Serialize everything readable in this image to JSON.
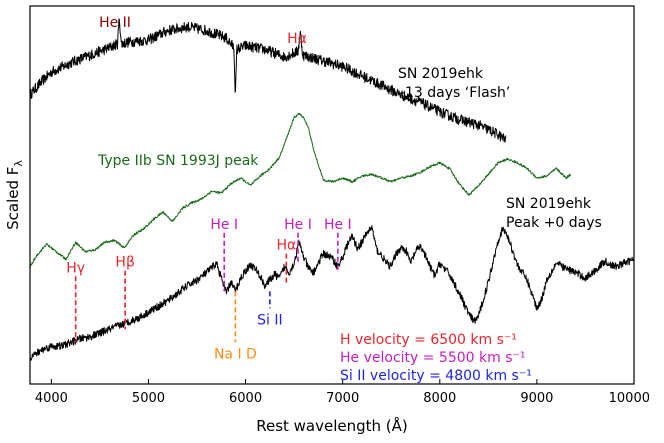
{
  "chart_data": {
    "type": "line",
    "title": "",
    "xlabel": "Rest wavelength (Å)",
    "ylabel": "Scaled F",
    "ylabel_subscript": "λ",
    "xlim": [
      3780,
      10000
    ],
    "ylim": [
      0,
      10
    ],
    "xticks": [
      4000,
      5000,
      6000,
      7000,
      8000,
      9000,
      10000
    ],
    "xtick_labels": [
      "4000",
      "5000",
      "6000",
      "7000",
      "8000",
      "9000",
      "10000"
    ],
    "colors": {
      "flash": "#000000",
      "sn1993j": "#1a6b1a",
      "peak": "#000000",
      "hydrogen": "#e8262d",
      "helium": "#c21fc2",
      "silicon": "#1f25e0",
      "sodium": "#ff8c1a",
      "helium_flash": "#8b0000"
    },
    "series": [
      {
        "name": "SN 2019ehk -13 days 'Flash'",
        "color": "#000000",
        "noise": 0.14,
        "x": [
          3780,
          3900,
          4000,
          4200,
          4400,
          4600,
          4680,
          4700,
          4720,
          4800,
          5000,
          5200,
          5400,
          5600,
          5800,
          5880,
          5895,
          5910,
          6000,
          6200,
          6400,
          6540,
          6563,
          6590,
          6800,
          7000,
          7200,
          7400,
          7600,
          7800,
          8000,
          8200,
          8400,
          8600,
          8680
        ],
        "y": [
          7.65,
          8.0,
          8.25,
          8.5,
          8.7,
          8.9,
          9.0,
          9.7,
          9.0,
          9.05,
          9.1,
          9.35,
          9.45,
          9.35,
          9.15,
          8.9,
          7.6,
          8.85,
          8.95,
          8.85,
          8.65,
          8.8,
          9.3,
          8.7,
          8.55,
          8.4,
          8.15,
          7.9,
          7.65,
          7.45,
          7.2,
          7.0,
          6.85,
          6.6,
          6.45
        ]
      },
      {
        "name": "Type IIb SN 1993J peak",
        "color": "#1a6b1a",
        "noise": 0.03,
        "x": [
          3780,
          3850,
          3950,
          4050,
          4150,
          4250,
          4350,
          4450,
          4550,
          4650,
          4750,
          4850,
          4950,
          5050,
          5150,
          5250,
          5350,
          5450,
          5550,
          5650,
          5750,
          5850,
          5950,
          6050,
          6150,
          6250,
          6350,
          6450,
          6500,
          6550,
          6600,
          6650,
          6700,
          6800,
          6900,
          7000,
          7100,
          7200,
          7300,
          7400,
          7500,
          7600,
          7700,
          7800,
          7900,
          8000,
          8100,
          8200,
          8300,
          8400,
          8500,
          8600,
          8700,
          8800,
          8900,
          9000,
          9100,
          9200,
          9300,
          9350
        ],
        "y": [
          3.1,
          3.4,
          3.7,
          3.5,
          3.3,
          3.75,
          3.5,
          3.55,
          3.75,
          3.8,
          3.6,
          3.95,
          4.1,
          4.35,
          4.55,
          4.3,
          4.65,
          4.8,
          4.9,
          5.1,
          5.05,
          5.3,
          5.45,
          5.25,
          5.5,
          5.7,
          6.0,
          6.7,
          7.05,
          7.15,
          7.05,
          6.75,
          6.2,
          5.4,
          5.35,
          5.45,
          5.35,
          5.5,
          5.55,
          5.45,
          5.35,
          5.45,
          5.5,
          5.6,
          5.75,
          5.85,
          5.7,
          5.3,
          5.0,
          5.25,
          5.55,
          5.85,
          5.95,
          5.85,
          5.7,
          5.45,
          5.5,
          5.7,
          5.45,
          5.55
        ]
      },
      {
        "name": "SN 2019ehk Peak +0 days",
        "color": "#000000",
        "noise": 0.1,
        "x": [
          3780,
          3900,
          4000,
          4100,
          4200,
          4300,
          4400,
          4500,
          4600,
          4700,
          4800,
          4900,
          5000,
          5100,
          5200,
          5300,
          5400,
          5500,
          5600,
          5700,
          5800,
          5850,
          5895,
          5950,
          6000,
          6050,
          6100,
          6150,
          6200,
          6250,
          6300,
          6350,
          6400,
          6450,
          6500,
          6550,
          6600,
          6650,
          6700,
          6750,
          6800,
          6850,
          6900,
          6950,
          7000,
          7050,
          7100,
          7150,
          7200,
          7250,
          7300,
          7350,
          7400,
          7450,
          7500,
          7550,
          7600,
          7650,
          7700,
          7750,
          7800,
          7850,
          7900,
          7950,
          8000,
          8100,
          8200,
          8300,
          8350,
          8400,
          8500,
          8600,
          8650,
          8700,
          8800,
          8900,
          9000,
          9050,
          9100,
          9200,
          9300,
          9400,
          9500,
          9600,
          9700,
          9800,
          9900,
          10000
        ],
        "y": [
          0.7,
          0.9,
          1.0,
          1.0,
          1.1,
          1.2,
          1.25,
          1.35,
          1.45,
          1.55,
          1.65,
          1.75,
          1.9,
          2.05,
          2.2,
          2.4,
          2.6,
          2.75,
          2.95,
          3.2,
          2.4,
          2.7,
          2.45,
          2.8,
          3.0,
          3.15,
          3.05,
          2.85,
          2.6,
          2.75,
          2.9,
          2.8,
          3.1,
          2.95,
          3.2,
          3.75,
          3.35,
          3.05,
          2.95,
          3.2,
          3.45,
          3.4,
          3.3,
          3.1,
          3.35,
          3.7,
          3.9,
          3.6,
          3.75,
          4.0,
          4.15,
          3.55,
          3.4,
          3.2,
          3.1,
          3.45,
          3.6,
          3.55,
          3.2,
          3.5,
          3.65,
          3.4,
          3.1,
          2.85,
          3.2,
          2.9,
          2.4,
          1.85,
          1.65,
          1.8,
          2.7,
          3.8,
          4.1,
          3.9,
          3.15,
          2.75,
          2.0,
          2.25,
          2.75,
          3.2,
          3.05,
          2.95,
          2.8,
          3.0,
          3.25,
          3.1,
          3.2,
          3.3
        ]
      }
    ],
    "line_markers": [
      {
        "label": "Hγ",
        "x": 4250,
        "y_top": 2.85,
        "y_bottom": 1.1,
        "color": "#e8262d"
      },
      {
        "label": "Hβ",
        "x": 4760,
        "y_top": 3.0,
        "y_bottom": 1.45,
        "color": "#e8262d"
      },
      {
        "label": "He I",
        "x": 5780,
        "y_top": 4.0,
        "y_bottom": 2.45,
        "color": "#c21fc2"
      },
      {
        "label": "Na I D",
        "x": 5895,
        "y_top": 2.45,
        "y_bottom": 1.1,
        "color": "#ff8c1a",
        "label_below": true
      },
      {
        "label": "Si II",
        "x": 6250,
        "y_top": 2.45,
        "y_bottom": 2.0,
        "color": "#1f25e0",
        "label_below": true
      },
      {
        "label": "Hα",
        "x": 6420,
        "y_top": 3.45,
        "y_bottom": 2.65,
        "color": "#e8262d"
      },
      {
        "label": "He I",
        "x": 6540,
        "y_top": 4.0,
        "y_bottom": 3.15,
        "color": "#c21fc2"
      },
      {
        "label": "He I",
        "x": 6950,
        "y_top": 4.0,
        "y_bottom": 3.0,
        "color": "#c21fc2"
      }
    ],
    "annotations": {
      "he2_flash": "He II",
      "halpha_flash": "Hα",
      "flash_label_line1": "SN 2019ehk",
      "flash_label_line2": "–13 days ‘Flash’",
      "sn1993j_label": "Type IIb SN 1993J peak",
      "peak_label_line1": "SN 2019ehk",
      "peak_label_line2": "Peak +0 days",
      "h_velocity": "H velocity = 6500 km s⁻¹",
      "he_velocity": "He velocity = 5500 km s⁻¹",
      "si_velocity": "Si II velocity = 4800 km s⁻¹"
    }
  }
}
